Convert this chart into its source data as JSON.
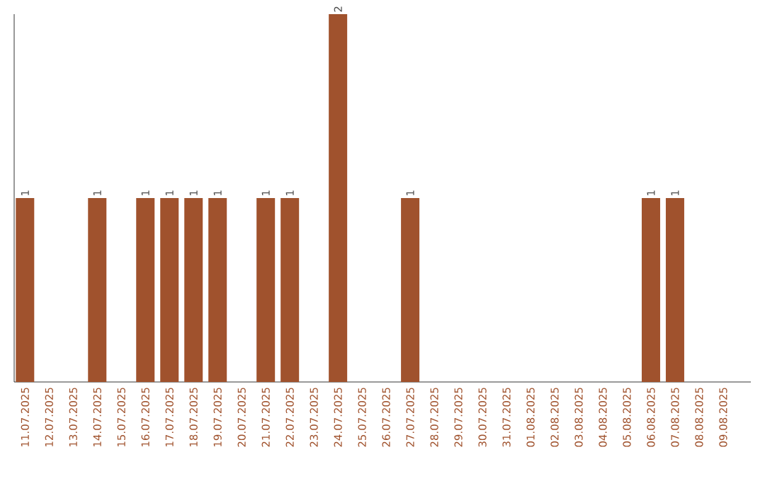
{
  "chart_data": {
    "type": "bar",
    "categories": [
      "11.07.2025",
      "12.07.2025",
      "13.07.2025",
      "14.07.2025",
      "15.07.2025",
      "16.07.2025",
      "17.07.2025",
      "18.07.2025",
      "19.07.2025",
      "20.07.2025",
      "21.07.2025",
      "22.07.2025",
      "23.07.2025",
      "24.07.2025",
      "25.07.2025",
      "26.07.2025",
      "27.07.2025",
      "28.07.2025",
      "29.07.2025",
      "30.07.2025",
      "31.07.2025",
      "01.08.2025",
      "02.08.2025",
      "03.08.2025",
      "04.08.2025",
      "05.08.2025",
      "06.08.2025",
      "07.08.2025",
      "08.08.2025",
      "09.08.2025"
    ],
    "values": [
      1,
      0,
      0,
      1,
      0,
      1,
      1,
      1,
      1,
      0,
      1,
      1,
      0,
      2,
      0,
      0,
      1,
      0,
      0,
      0,
      0,
      0,
      0,
      0,
      0,
      0,
      1,
      1,
      0,
      0
    ],
    "value_labels": [
      "1",
      null,
      null,
      "1",
      null,
      "1",
      "1",
      "1",
      "1",
      null,
      "1",
      "1",
      null,
      "2",
      null,
      null,
      "1",
      null,
      null,
      null,
      null,
      null,
      null,
      null,
      null,
      null,
      "1",
      "1",
      null,
      null
    ],
    "color": "#a0522d",
    "tick_labels": "x"
  }
}
